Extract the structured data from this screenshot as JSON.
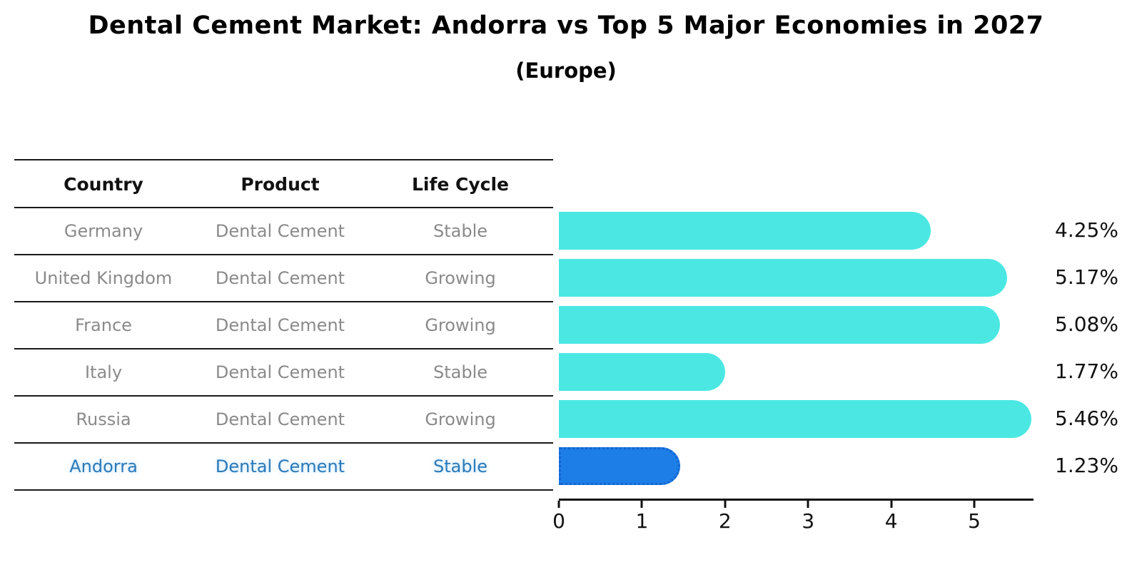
{
  "title": "Dental Cement Market: Andorra vs Top 5 Major Economies in 2027",
  "subtitle": "(Europe)",
  "table": {
    "headers": [
      "Country",
      "Product",
      "Life Cycle"
    ],
    "rows": [
      {
        "country": "Germany",
        "product": "Dental Cement",
        "life_cycle": "Stable",
        "highlight": false
      },
      {
        "country": "United Kingdom",
        "product": "Dental Cement",
        "life_cycle": "Growing",
        "highlight": false
      },
      {
        "country": "France",
        "product": "Dental Cement",
        "life_cycle": "Growing",
        "highlight": false
      },
      {
        "country": "Italy",
        "product": "Dental Cement",
        "life_cycle": "Stable",
        "highlight": false
      },
      {
        "country": "Russia",
        "product": "Dental Cement",
        "life_cycle": "Growing",
        "highlight": true
      }
    ],
    "highlight_row": {
      "country": "Andorra",
      "product": "Dental Cement",
      "life_cycle": "Stable",
      "highlight": true
    }
  },
  "chart_data": {
    "type": "bar",
    "orientation": "horizontal",
    "categories": [
      "Germany",
      "United Kingdom",
      "France",
      "Italy",
      "Russia",
      "Andorra"
    ],
    "values": [
      4.25,
      5.17,
      5.08,
      1.77,
      5.46,
      1.23
    ],
    "value_labels": [
      "4.25%",
      "5.17%",
      "5.08%",
      "1.77%",
      "5.46%",
      "1.23%"
    ],
    "x_ticks": [
      "0",
      "1",
      "2",
      "3",
      "4",
      "5"
    ],
    "xlim": [
      0,
      5.712
    ],
    "xlabel": "",
    "ylabel": "",
    "grid": false,
    "legend": false,
    "bar_color": "#4BE8E3",
    "highlight_color": "#1C7EE6",
    "highlight_index": 5,
    "highlight_border_style": "dotted"
  },
  "colors": {
    "bar_cyan": "#4BE8E3",
    "bar_blue": "#1C7EE6",
    "table_text_gray": "#8a8a8a",
    "highlight_text_blue": "#2d7ab8",
    "line_black": "#1a1a1a"
  }
}
